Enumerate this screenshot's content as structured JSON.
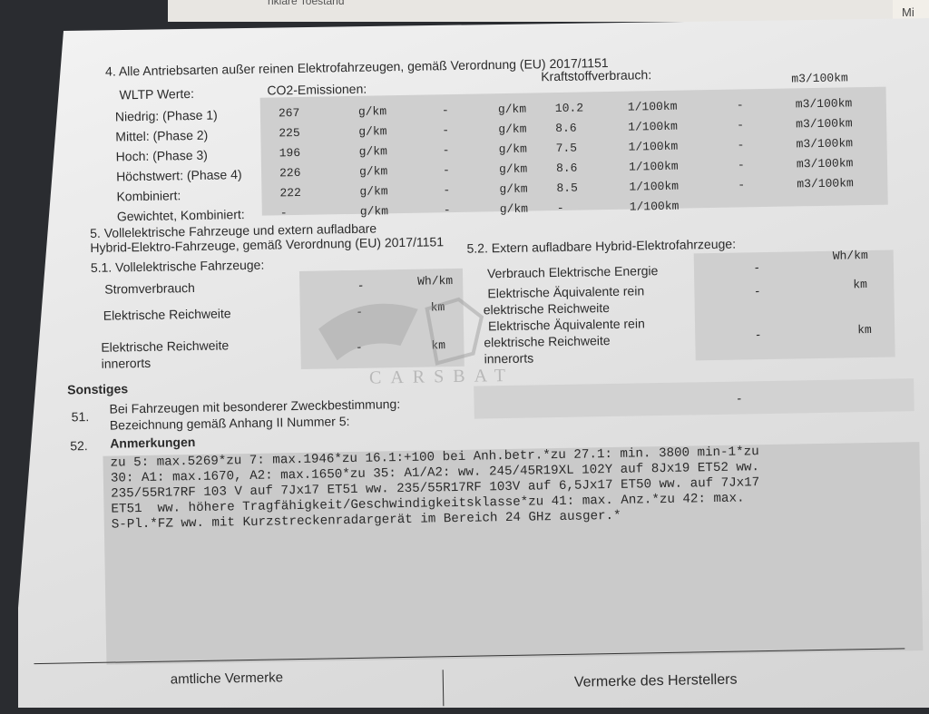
{
  "top_strip": "nklare Toestand",
  "right_card": "Mi",
  "section4": {
    "title": "4. Alle Antriebsarten außer reinen Elektrofahrzeugen, gemäß Verordnung (EU) 2017/1151",
    "wltp": "WLTP Werte:",
    "co2": "CO2-Emissionen:",
    "fuel": "Kraftstoffverbrauch:",
    "top_unit": "m3/100km",
    "rows": [
      {
        "label": "Niedrig: (Phase 1)",
        "co2": "267",
        "u1": "g/km",
        "d1": "-",
        "u2": "g/km",
        "fuel": "10.2",
        "u3": "1/100km",
        "d2": "-",
        "u4": "m3/100km"
      },
      {
        "label": "Mittel: (Phase 2)",
        "co2": "225",
        "u1": "g/km",
        "d1": "-",
        "u2": "g/km",
        "fuel": "8.6",
        "u3": "1/100km",
        "d2": "-",
        "u4": "m3/100km"
      },
      {
        "label": "Hoch: (Phase 3)",
        "co2": "196",
        "u1": "g/km",
        "d1": "-",
        "u2": "g/km",
        "fuel": "7.5",
        "u3": "1/100km",
        "d2": "-",
        "u4": "m3/100km"
      },
      {
        "label": "Höchstwert: (Phase 4)",
        "co2": "226",
        "u1": "g/km",
        "d1": "-",
        "u2": "g/km",
        "fuel": "8.6",
        "u3": "1/100km",
        "d2": "-",
        "u4": "m3/100km"
      },
      {
        "label": "Kombiniert:",
        "co2": "222",
        "u1": "g/km",
        "d1": "-",
        "u2": "g/km",
        "fuel": "8.5",
        "u3": "1/100km",
        "d2": "-",
        "u4": "m3/100km"
      },
      {
        "label": "Gewichtet, Kombiniert:",
        "co2": "-",
        "u1": "g/km",
        "d1": "-",
        "u2": "g/km",
        "fuel": "-",
        "u3": "1/100km",
        "d2": "",
        "u4": ""
      }
    ]
  },
  "section5": {
    "title1": "5. Vollelektrische Fahrzeuge und extern aufladbare",
    "title2": "Hybrid-Elektro-Fahrzeuge, gemäß Verordnung (EU) 2017/1151",
    "s51": "5.1. Vollelektrische Fahrzeuge:",
    "s52": "5.2. Extern aufladbare Hybrid-Elektrofahrzeuge:",
    "left": [
      {
        "label": "Stromverbrauch",
        "value": "-",
        "unit": "Wh/km"
      },
      {
        "label": "Elektrische Reichweite",
        "value": "-",
        "unit": "km"
      },
      {
        "label": "Elektrische Reichweite",
        "label2": "innerorts",
        "value": "-",
        "unit": "km"
      }
    ],
    "right": [
      {
        "label": "Verbrauch Elektrische Energie",
        "value": "-",
        "unit": "Wh/km"
      },
      {
        "label": "Elektrische Äquivalente rein",
        "label2": "elektrische Reichweite",
        "value": "-",
        "unit": "km"
      },
      {
        "label": "Elektrische Äquivalente rein",
        "label2": "elektrische Reichweite",
        "label3": "innerorts",
        "value": "-",
        "unit": "km"
      }
    ]
  },
  "watermark": "CARSBAT",
  "sonstiges": {
    "title": "Sonstiges",
    "n51": "51.",
    "l51a": "Bei Fahrzeugen mit besonderer Zweckbestimmung:",
    "l51b": "Bezeichnung gemäß Anhang II Nummer 5:",
    "v51": "-",
    "n52": "52.",
    "l52": "Anmerkungen",
    "notes": "zu 5: max.5269*zu 7: max.1946*zu 16.1:+100 bei Anh.betr.*zu 27.1: min. 3800 min-1*zu\n30: A1: max.1670, A2: max.1650*zu 35: A1/A2: ww. 245/45R19XL 102Y auf 8Jx19 ET52 ww.\n235/55R17RF 103 V auf 7Jx17 ET51 ww. 235/55R17RF 103V auf 6,5Jx17 ET50 ww. auf 7Jx17\nET51  ww. höhere Tragfähigkeit/Geschwindigkeitsklasse*zu 41: max. Anz.*zu 42: max.\nS-Pl.*FZ ww. mit Kurzstreckenradargerät im Bereich 24 GHz ausger.*"
  },
  "footer": {
    "left": "amtliche Vermerke",
    "right": "Vermerke des Herstellers"
  }
}
